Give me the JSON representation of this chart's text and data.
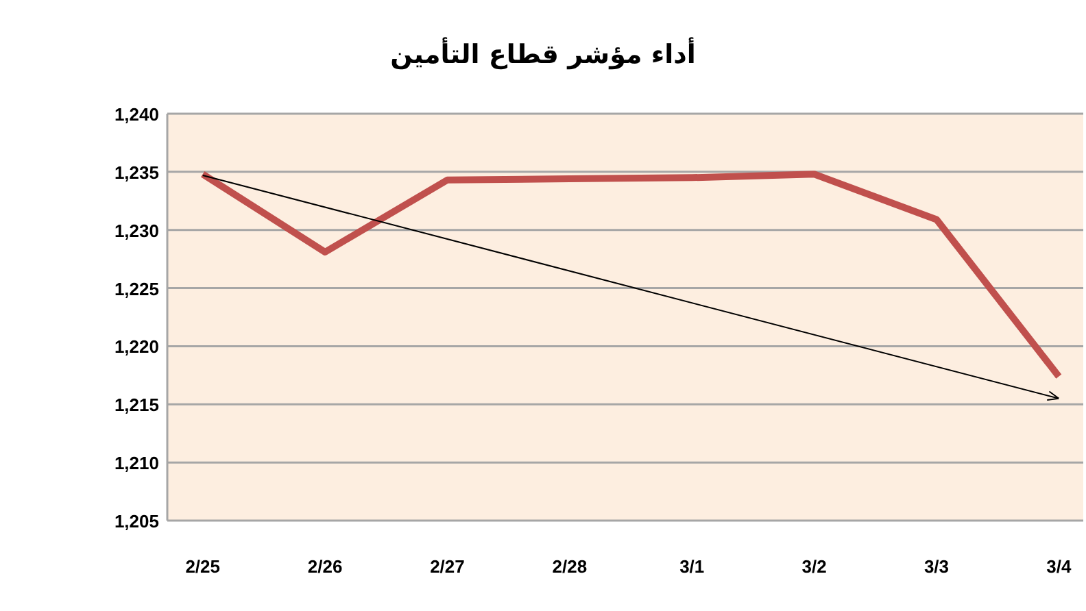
{
  "chart_data": {
    "type": "line",
    "title": "أداء مؤشر قطاع التأمين",
    "categories": [
      "2/25",
      "2/26",
      "2/27",
      "2/28",
      "3/1",
      "3/2",
      "3/3",
      "3/4"
    ],
    "series": [
      {
        "color": "#c0504d",
        "values": [
          1234.8,
          1228.1,
          1234.3,
          1234.4,
          1234.5,
          1234.8,
          1230.9,
          1217.4
        ]
      },
      {
        "type": "line",
        "color": "#000000",
        "x": [
          "2/25",
          "3/4"
        ],
        "values": [
          1234.7,
          1215.5
        ]
      }
    ],
    "ylim": [
      1205,
      1240
    ],
    "yticks": [
      {
        "value": 1205,
        "label": "1,205"
      },
      {
        "value": 1210,
        "label": "1,210"
      },
      {
        "value": 1215,
        "label": "1,215"
      },
      {
        "value": 1220,
        "label": "1,220"
      },
      {
        "value": 1225,
        "label": "1,225"
      },
      {
        "value": 1230,
        "label": "1,230"
      },
      {
        "value": 1235,
        "label": "1,235"
      },
      {
        "value": 1240,
        "label": "1,240"
      }
    ],
    "grid": "y",
    "line_style": "solid"
  }
}
